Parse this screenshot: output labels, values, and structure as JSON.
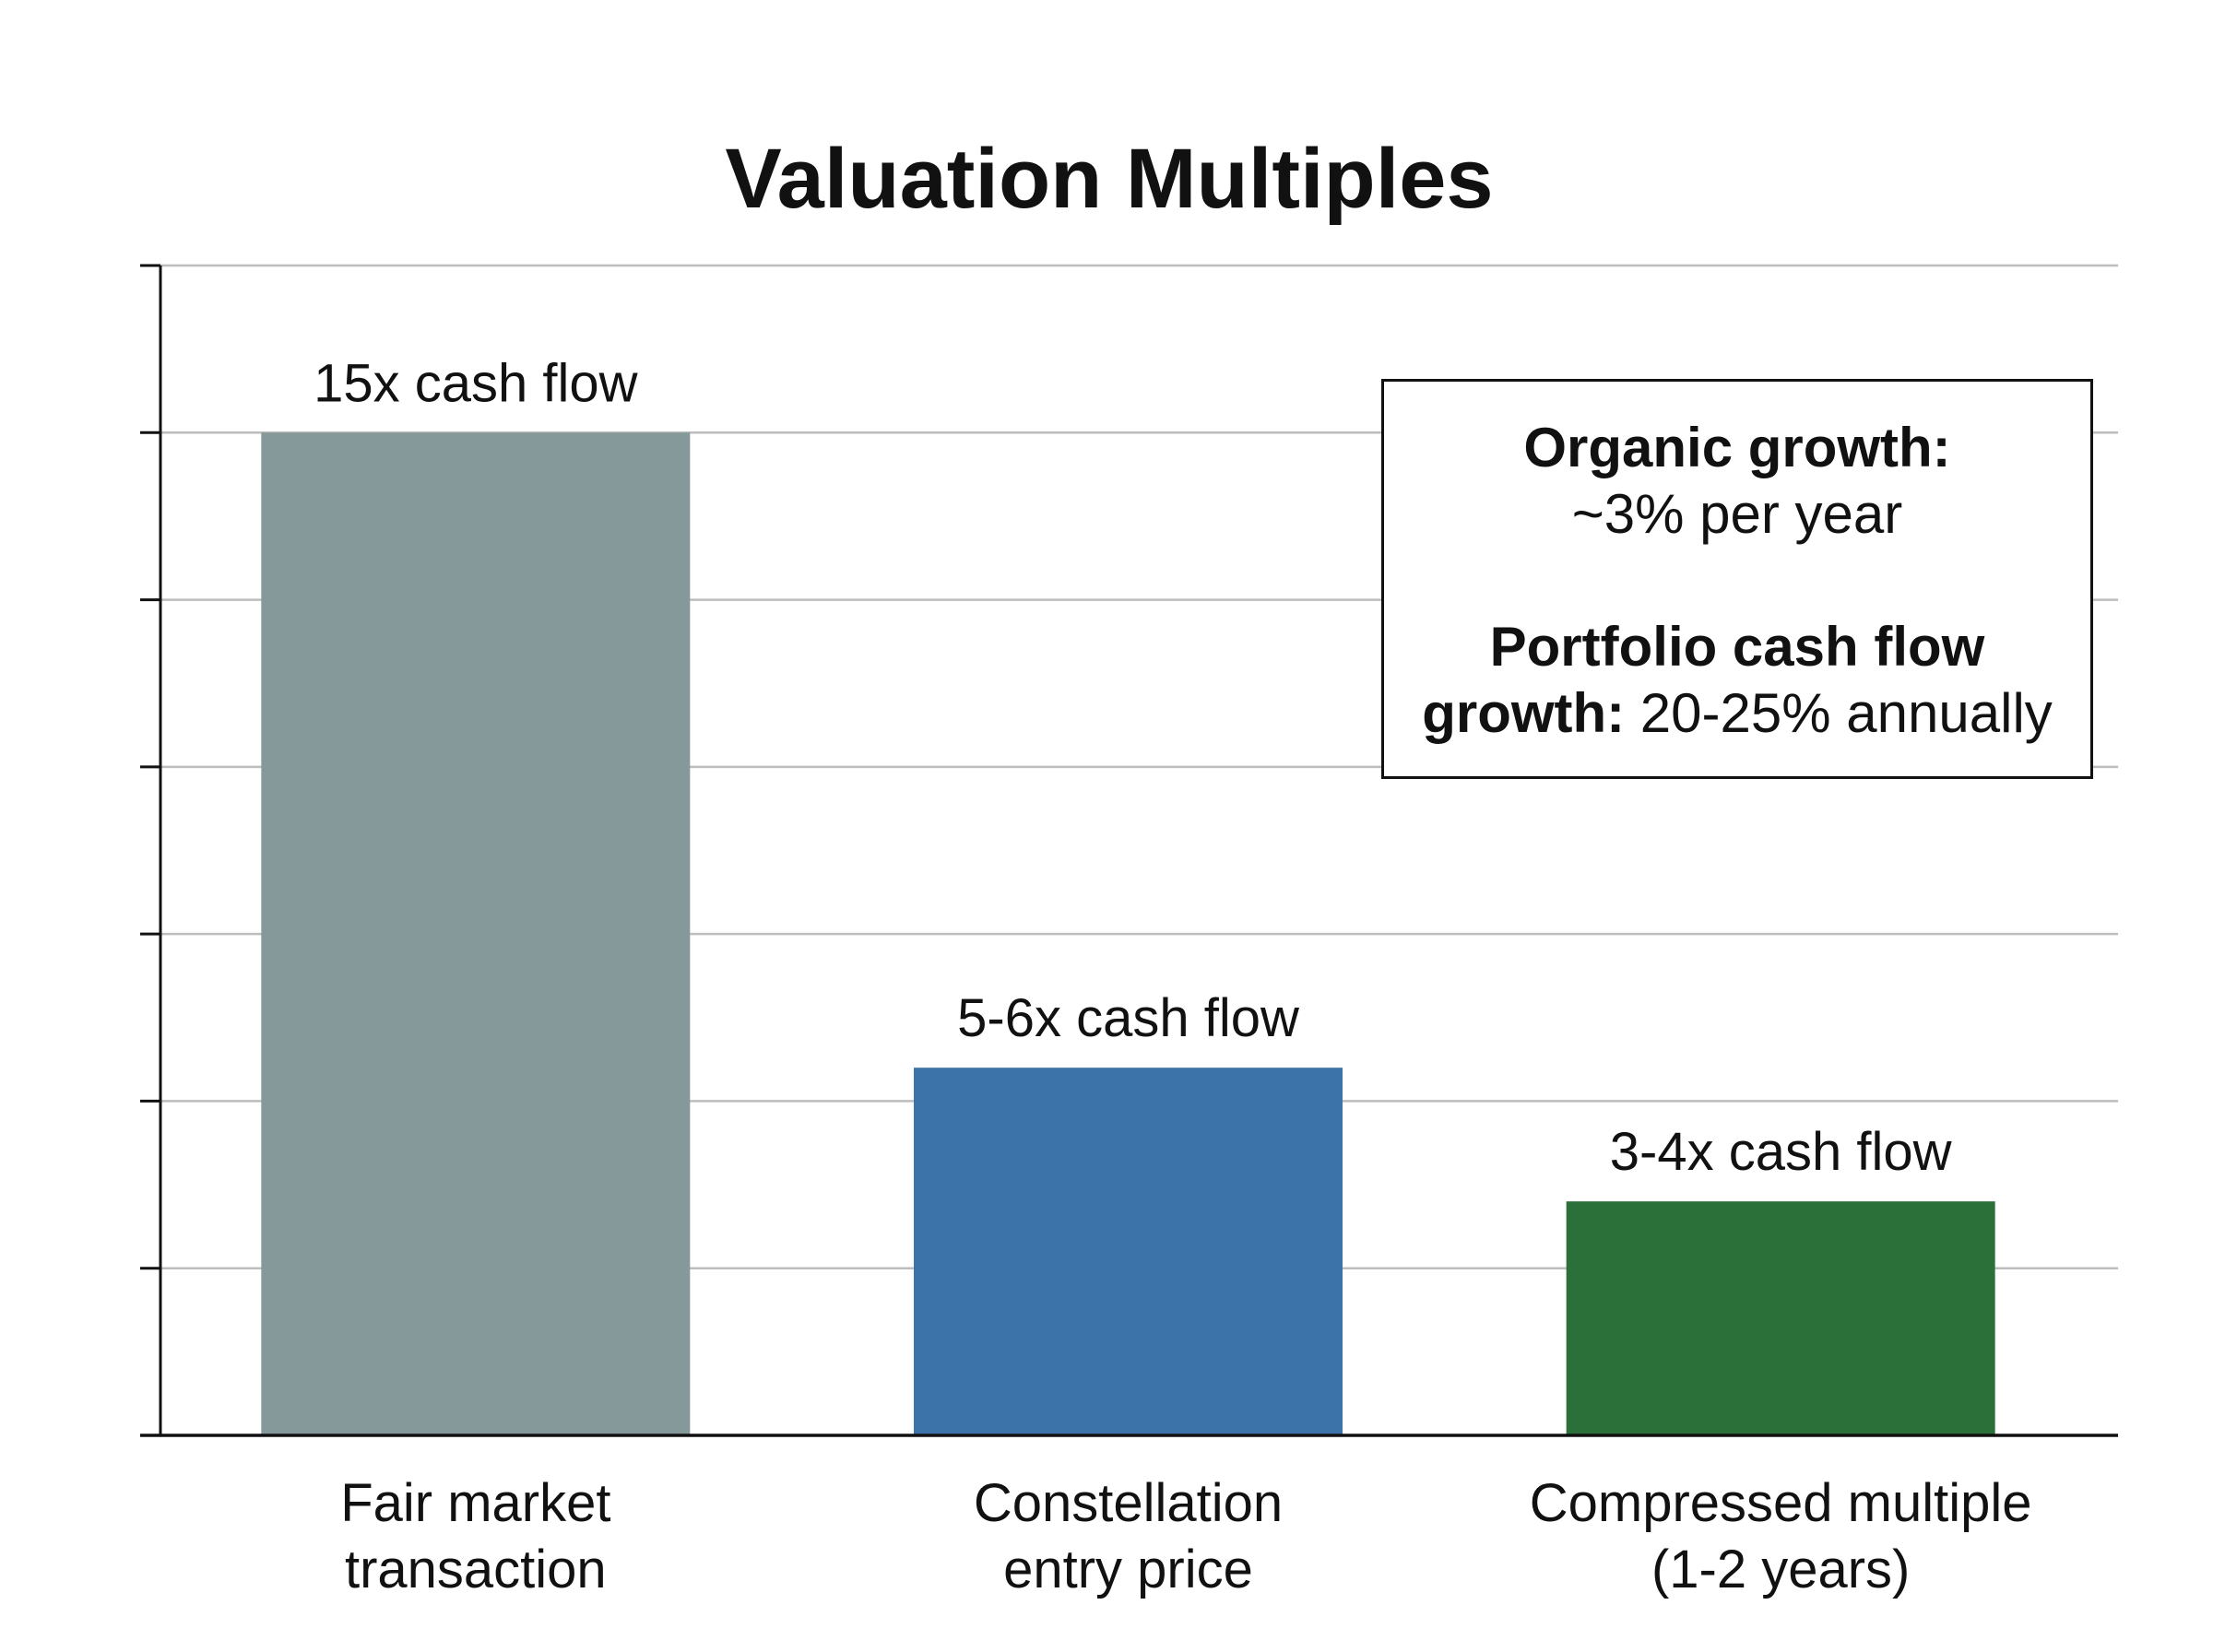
{
  "chart_data": {
    "type": "bar",
    "title": "Valuation Multiples",
    "xlabel": "",
    "ylabel": "",
    "categories": [
      [
        "Fair market",
        "transaction"
      ],
      [
        "Constellation",
        "entry price"
      ],
      [
        "Compressed multiple",
        "(1-2 years)"
      ]
    ],
    "values": [
      15,
      5.5,
      3.5
    ],
    "data_labels": [
      "15x cash flow",
      "5-6x cash flow",
      "3-4x cash flow"
    ],
    "ylim": [
      0,
      17.5
    ],
    "yticks": [
      0,
      2.5,
      5,
      7.5,
      10,
      12.5,
      15,
      17.5
    ],
    "grid": true,
    "colors": [
      "#85989a",
      "#3c74aa",
      "#2a7038"
    ]
  },
  "annotation": {
    "line1_bold": "Organic growth:",
    "line2": "~3% per year",
    "line3_bold": "Portfolio cash flow",
    "line4_bold": "growth:",
    "line4_rest": " 20-25% annually"
  }
}
